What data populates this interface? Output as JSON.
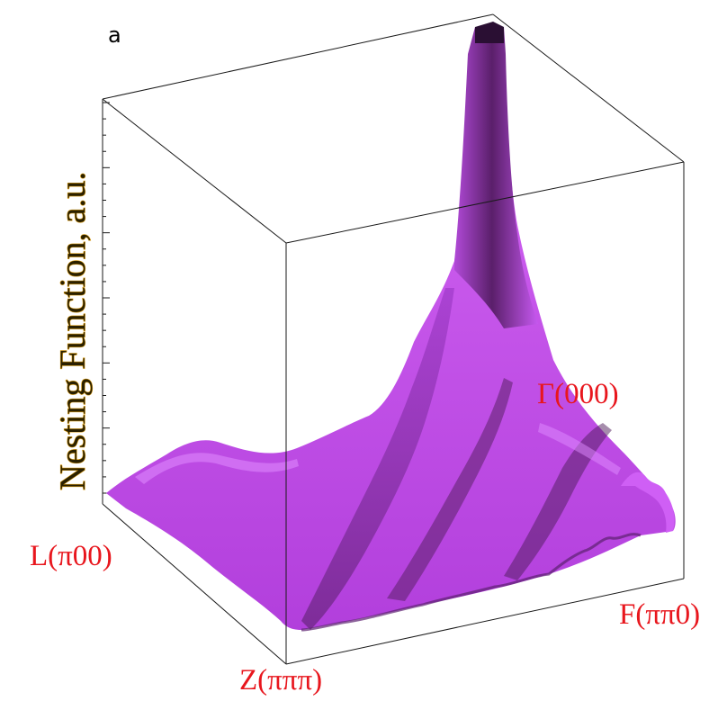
{
  "chart_data": {
    "type": "surface3d",
    "panel_label": "a",
    "zlabel": "Nesting Function, a.u.",
    "colors": {
      "surface": "#c04ce6",
      "surface_dark": "#4a1a55",
      "labels": "#e8161d",
      "zlabel": "#d89a10"
    },
    "points": [
      {
        "name": "gamma",
        "label": "Γ(000)",
        "role": "peak"
      },
      {
        "name": "l",
        "label": "L(π00)",
        "role": "corner"
      },
      {
        "name": "z",
        "label": "Z(πππ)",
        "role": "corner"
      },
      {
        "name": "f",
        "label": "F(ππ0)",
        "role": "corner"
      }
    ],
    "z_minor_ticks": 24,
    "surface": {
      "description_values": "relative nesting height along sampled grid, peak at Γ",
      "peak_height": 1.0,
      "background_level": 0.12,
      "grid_rows": [
        [
          0.05,
          0.06,
          0.08,
          0.07,
          0.06,
          0.05,
          0.04,
          0.05,
          0.06,
          0.05
        ],
        [
          0.08,
          0.1,
          0.12,
          0.11,
          0.09,
          0.08,
          0.07,
          0.08,
          0.07,
          0.06
        ],
        [
          0.1,
          0.12,
          0.15,
          0.16,
          0.14,
          0.12,
          0.1,
          0.09,
          0.08,
          0.07
        ],
        [
          0.12,
          0.14,
          0.18,
          0.22,
          0.2,
          0.18,
          0.14,
          0.12,
          0.1,
          0.08
        ],
        [
          0.14,
          0.16,
          0.2,
          0.28,
          0.35,
          0.3,
          0.22,
          0.16,
          0.12,
          0.1
        ],
        [
          0.15,
          0.18,
          0.22,
          0.32,
          0.55,
          0.6,
          0.35,
          0.2,
          0.14,
          0.11
        ],
        [
          0.16,
          0.19,
          0.24,
          0.35,
          0.7,
          1.0,
          0.45,
          0.22,
          0.15,
          0.12
        ],
        [
          0.15,
          0.18,
          0.22,
          0.3,
          0.45,
          0.5,
          0.3,
          0.18,
          0.14,
          0.1
        ]
      ]
    }
  }
}
